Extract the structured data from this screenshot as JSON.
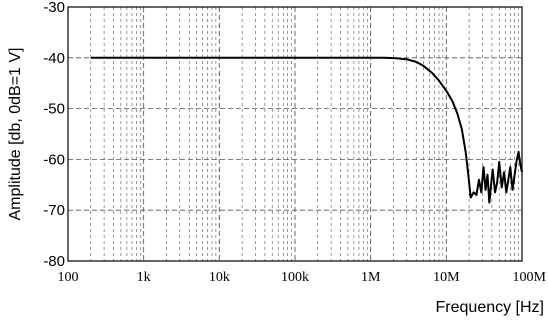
{
  "chart_data": {
    "type": "line",
    "title": "",
    "xlabel": "Frequency [Hz]",
    "ylabel": "Amplitude [db, 0dB=1 V]",
    "xscale": "log",
    "xlim": [
      100,
      100000000
    ],
    "ylim": [
      -80,
      -30
    ],
    "x_ticks": [
      {
        "value": 100,
        "label": "100"
      },
      {
        "value": 1000,
        "label": "1k"
      },
      {
        "value": 10000,
        "label": "10k"
      },
      {
        "value": 100000,
        "label": "100k"
      },
      {
        "value": 1000000,
        "label": "1M"
      },
      {
        "value": 10000000,
        "label": "10M"
      },
      {
        "value": 100000000,
        "label": "100M"
      }
    ],
    "y_ticks": [
      {
        "value": -30,
        "label": "-30"
      },
      {
        "value": -40,
        "label": "-40"
      },
      {
        "value": -50,
        "label": "-50"
      },
      {
        "value": -60,
        "label": "-60"
      },
      {
        "value": -70,
        "label": "-70"
      },
      {
        "value": -80,
        "label": "-80"
      }
    ],
    "grid": true,
    "line_color": "#000000",
    "grid_color": "#555555",
    "series": [
      {
        "x": [
          200,
          1000,
          10000,
          100000,
          1000000,
          1500000,
          2200000,
          3000000,
          4000000,
          5000000,
          6500000,
          8000000,
          10000000,
          12000000,
          14000000,
          16000000,
          18000000,
          19500000,
          21000000,
          23000000,
          25000000,
          27000000,
          29000000,
          31000000,
          33000000,
          35000000,
          37000000,
          39000000,
          41000000,
          44000000,
          47000000,
          50000000,
          54000000,
          58000000,
          62000000,
          66000000,
          70000000,
          75000000,
          80000000,
          85000000,
          90000000,
          95000000,
          100000000
        ],
        "y": [
          -40,
          -40,
          -40,
          -40,
          -40,
          -40,
          -40.1,
          -40.3,
          -40.8,
          -41.6,
          -43,
          -44.5,
          -46.5,
          -48.5,
          -51,
          -54,
          -58.5,
          -63,
          -67.5,
          -66.5,
          -67,
          -64,
          -66.5,
          -61.5,
          -66,
          -63,
          -68.5,
          -65,
          -62,
          -66.5,
          -64.5,
          -60.5,
          -65.5,
          -62.5,
          -66.5,
          -64,
          -61.5,
          -66,
          -63,
          -60.2,
          -58.5,
          -61,
          -62.5
        ]
      }
    ]
  }
}
